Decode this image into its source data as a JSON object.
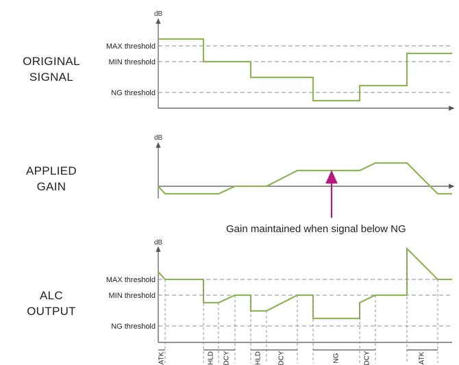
{
  "labels": {
    "original": [
      "ORIGINAL",
      "SIGNAL"
    ],
    "gain": [
      "APPLIED",
      "GAIN"
    ],
    "output": [
      "ALC",
      "OUTPUT"
    ]
  },
  "axis_unit": "dB",
  "thresholds": {
    "max": "MAX threshold",
    "min": "MIN threshold",
    "ng": "NG threshold"
  },
  "annotation": "Gain maintained when signal below NG",
  "phases": [
    "ATK",
    "HLD",
    "DCY",
    "HLD",
    "DCY",
    "NG",
    "DCY",
    "ATK"
  ],
  "colors": {
    "signal": "#8fb356",
    "arrow": "#b5197a",
    "axis": "#555555",
    "dashed": "#8a8a8a"
  }
}
